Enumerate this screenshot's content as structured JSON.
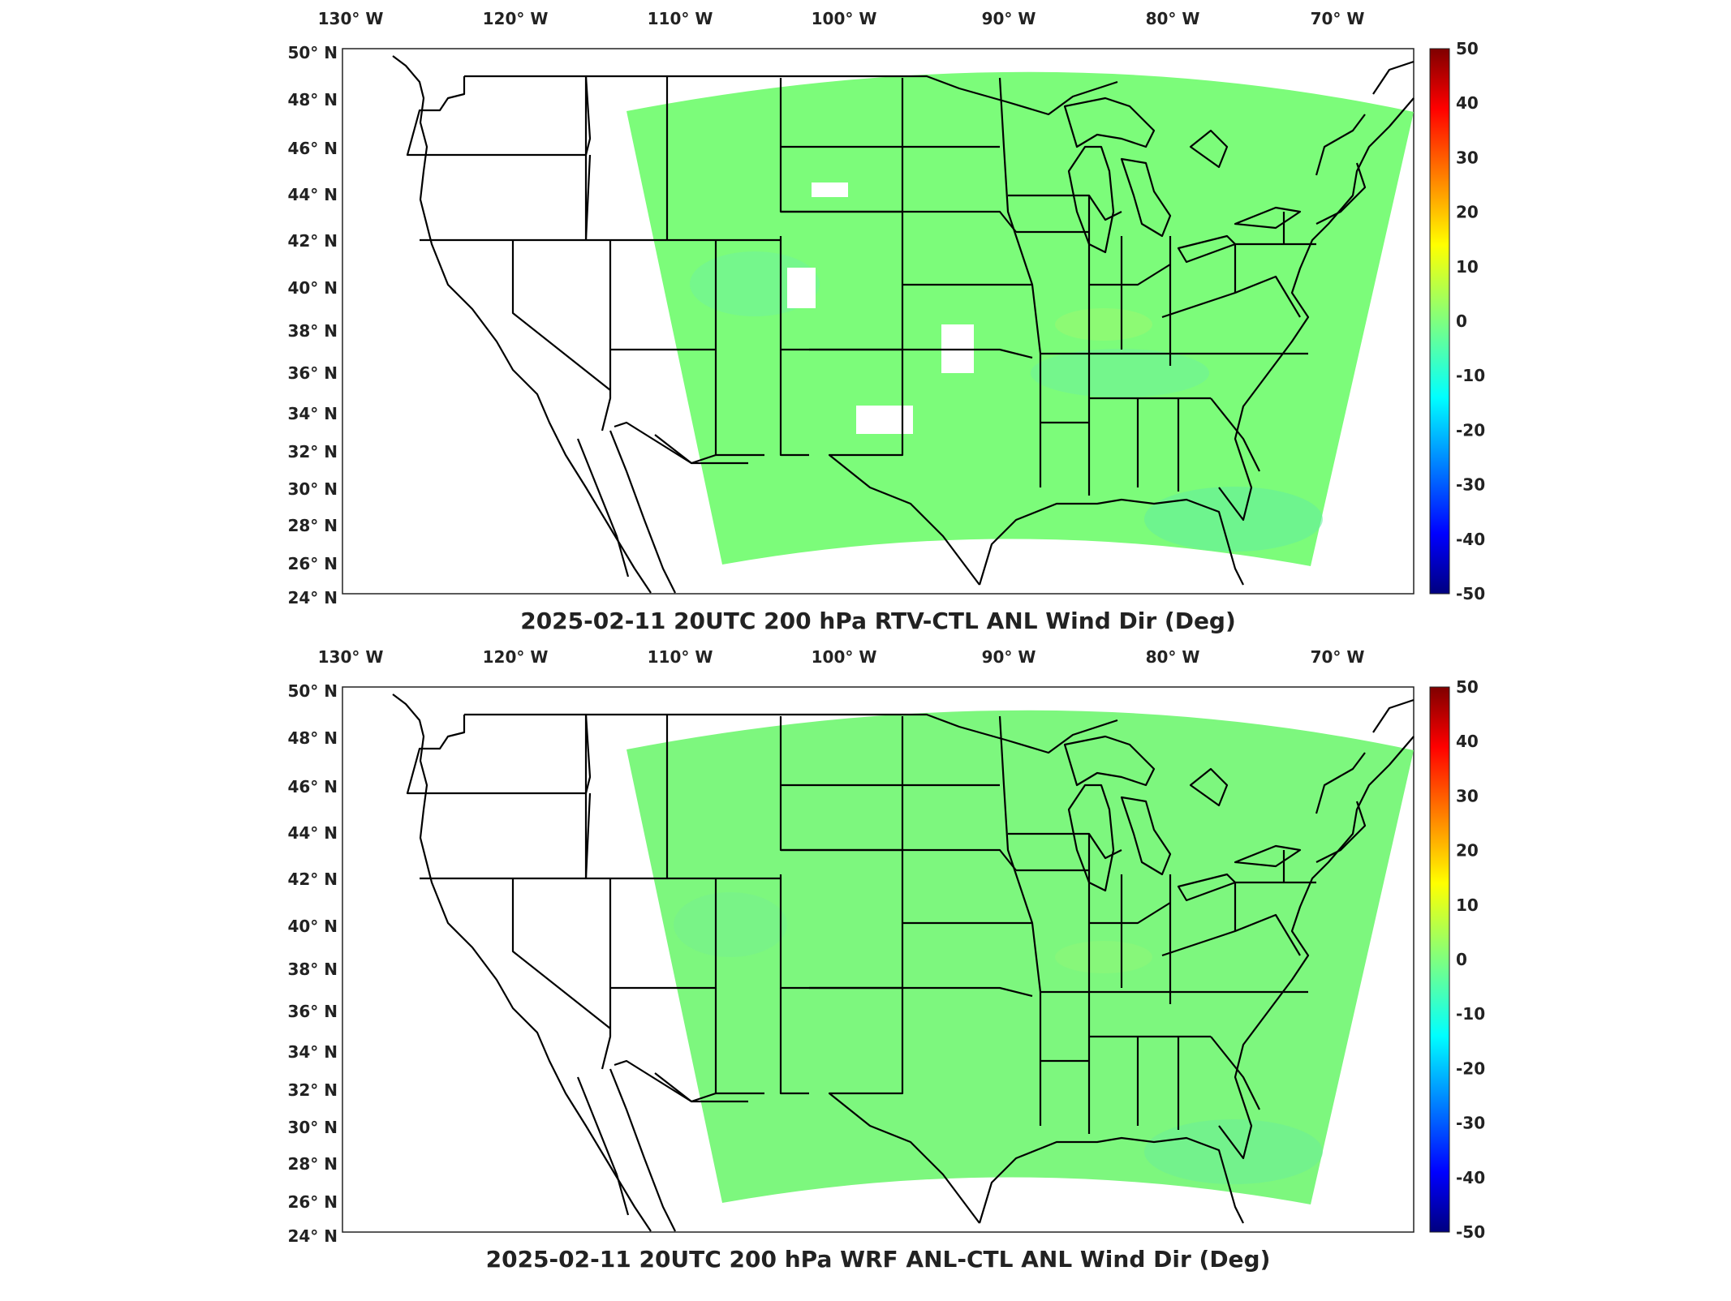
{
  "panels": [
    {
      "title": "2025-02-11 20UTC 200 hPa RTV-CTL ANL Wind Dir (Deg)",
      "field_color": "#7cfc7a"
    },
    {
      "title": "2025-02-11 20UTC 200 hPa WRF ANL-CTL ANL Wind Dir (Deg)",
      "field_color": "#7df77e"
    }
  ],
  "lon_labels": [
    "130",
    "120",
    "110",
    "100",
    "90",
    "80",
    "70"
  ],
  "lon_suffix": "W",
  "lat_labels": [
    "50",
    "48",
    "46",
    "44",
    "42",
    "40",
    "38",
    "36",
    "34",
    "32",
    "30",
    "28",
    "26",
    "24"
  ],
  "lat_suffix": "N",
  "degree_symbol": "°",
  "colorbar": {
    "ticks": [
      "50",
      "40",
      "30",
      "20",
      "10",
      "0",
      "-10",
      "-20",
      "-30",
      "-40",
      "-50"
    ],
    "min": -50,
    "max": 50,
    "colormap": "jet"
  }
}
